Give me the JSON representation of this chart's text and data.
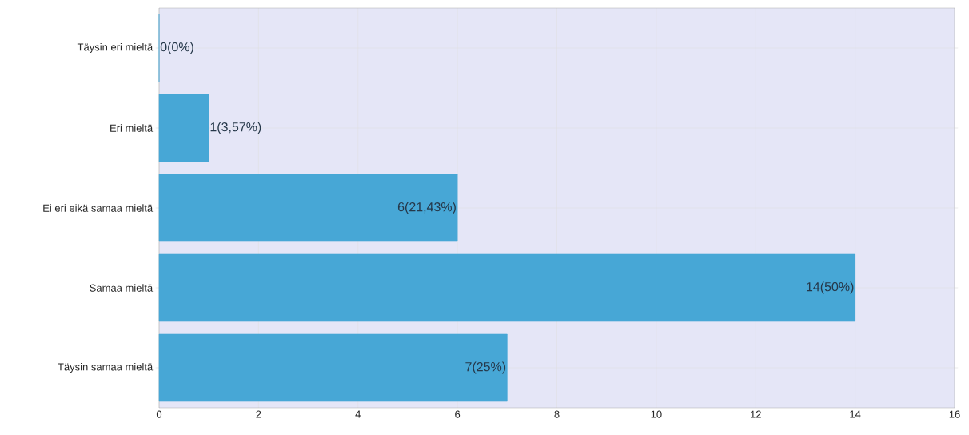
{
  "chart_data": {
    "type": "bar",
    "orientation": "horizontal",
    "categories": [
      "Täysin eri mieltä",
      "Eri mieltä",
      "Ei eri eikä samaa mieltä",
      "Samaa mieltä",
      "Täysin samaa mieltä"
    ],
    "values": [
      0,
      1,
      6,
      14,
      7
    ],
    "value_labels": [
      "0(0%)",
      "1(3,57%)",
      "6(21,43%)",
      "14(50%)",
      "7(25%)"
    ],
    "color": "#47a7d6",
    "xlim": [
      0,
      16
    ],
    "xticks": [
      0,
      2,
      4,
      6,
      8,
      10,
      12,
      14,
      16
    ],
    "grid": true
  }
}
